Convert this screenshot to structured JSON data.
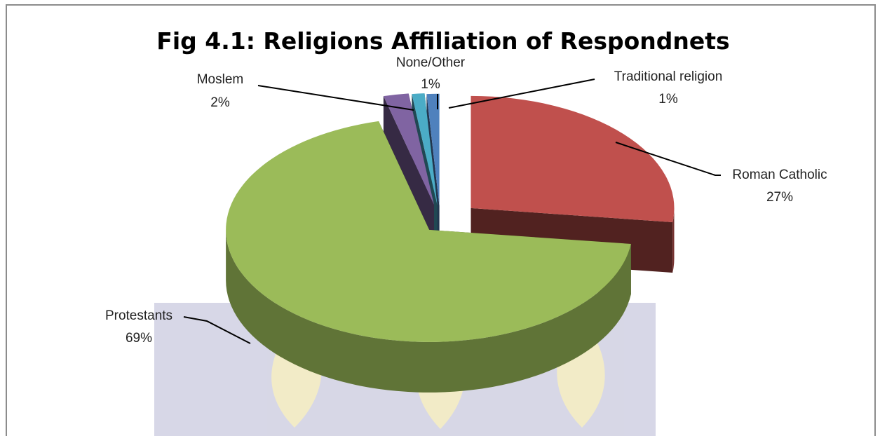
{
  "chart_data": {
    "type": "pie",
    "title": "Fig 4.1: Religions Affiliation of Respondnets",
    "style": "3d-exploded",
    "legend": "none",
    "slices": [
      {
        "label": "Roman Catholic",
        "value": 27,
        "value_label": "27%",
        "color": "#c0504d"
      },
      {
        "label": "Protestants",
        "value": 69,
        "value_label": "69%",
        "color": "#9bbb59"
      },
      {
        "label": "Moslem",
        "value": 2,
        "value_label": "2%",
        "color": "#8064a2"
      },
      {
        "label": "None/Other",
        "value": 1,
        "value_label": "1%",
        "color": "#4bacc6"
      },
      {
        "label": "Traditional religion",
        "value": 1,
        "value_label": "1%",
        "color": "#4f81bd"
      }
    ]
  },
  "watermark_color": "#b7b7d3",
  "watermark_accent": "#e8dc9a"
}
